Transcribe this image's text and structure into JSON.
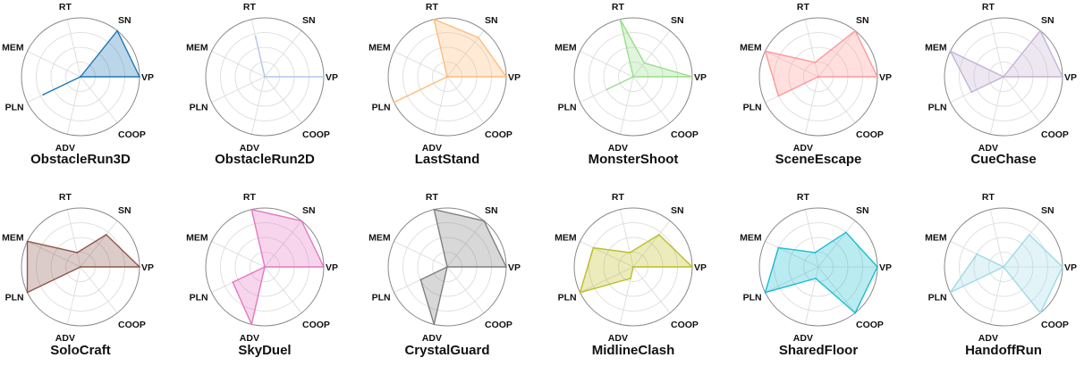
{
  "chart_data": [
    {
      "type": "radar",
      "title": "ObstacleRun3D",
      "color": "#1f77b4",
      "axes": [
        "VP",
        "SN",
        "RT",
        "MEM",
        "PLN",
        "ADV",
        "COOP"
      ],
      "values": [
        1.0,
        1.0,
        0.0,
        0.0,
        0.7,
        0.0,
        0.0
      ],
      "rlim": [
        0,
        1
      ]
    },
    {
      "type": "radar",
      "title": "ObstacleRun2D",
      "color": "#aec7e8",
      "axes": [
        "VP",
        "SN",
        "RT",
        "MEM",
        "PLN",
        "ADV",
        "COOP"
      ],
      "values": [
        1.0,
        0.0,
        0.7,
        0.0,
        0.0,
        0.0,
        0.0
      ],
      "rlim": [
        0,
        1
      ]
    },
    {
      "type": "radar",
      "title": "LastStand",
      "color": "#ffbb78",
      "axes": [
        "VP",
        "SN",
        "RT",
        "MEM",
        "PLN",
        "ADV",
        "COOP"
      ],
      "values": [
        1.0,
        0.85,
        1.0,
        0.0,
        1.0,
        0.0,
        0.0
      ],
      "rlim": [
        0,
        1
      ]
    },
    {
      "type": "radar",
      "title": "MonsterShoot",
      "color": "#98df8a",
      "axes": [
        "VP",
        "SN",
        "RT",
        "MEM",
        "PLN",
        "ADV",
        "COOP"
      ],
      "values": [
        1.0,
        0.3,
        1.0,
        0.0,
        0.5,
        0.0,
        0.0
      ],
      "rlim": [
        0,
        1
      ]
    },
    {
      "type": "radar",
      "title": "SceneEscape",
      "color": "#ff9896",
      "axes": [
        "VP",
        "SN",
        "RT",
        "MEM",
        "PLN",
        "ADV",
        "COOP"
      ],
      "values": [
        1.0,
        1.0,
        0.25,
        1.0,
        0.75,
        0.0,
        0.0
      ],
      "rlim": [
        0,
        1
      ]
    },
    {
      "type": "radar",
      "title": "CueChase",
      "color": "#c5b0d5",
      "axes": [
        "VP",
        "SN",
        "RT",
        "MEM",
        "PLN",
        "ADV",
        "COOP"
      ],
      "values": [
        1.0,
        1.0,
        0.0,
        1.0,
        0.6,
        0.0,
        0.0
      ],
      "rlim": [
        0,
        1
      ]
    },
    {
      "type": "radar",
      "title": "SoloCraft",
      "color": "#8c564b",
      "axes": [
        "VP",
        "SN",
        "RT",
        "MEM",
        "PLN",
        "ADV",
        "COOP"
      ],
      "values": [
        1.0,
        0.7,
        0.25,
        1.0,
        1.0,
        0.0,
        0.0
      ],
      "rlim": [
        0,
        1
      ]
    },
    {
      "type": "radar",
      "title": "SkyDuel",
      "color": "#e377c2",
      "axes": [
        "VP",
        "SN",
        "RT",
        "MEM",
        "PLN",
        "ADV",
        "COOP"
      ],
      "values": [
        1.0,
        1.0,
        1.0,
        0.0,
        0.6,
        1.0,
        0.0
      ],
      "rlim": [
        0,
        1
      ]
    },
    {
      "type": "radar",
      "title": "CrystalGuard",
      "color": "#7f7f7f",
      "axes": [
        "VP",
        "SN",
        "RT",
        "MEM",
        "PLN",
        "ADV",
        "COOP"
      ],
      "values": [
        1.0,
        1.0,
        1.0,
        0.0,
        0.5,
        1.0,
        0.0
      ],
      "rlim": [
        0,
        1
      ]
    },
    {
      "type": "radar",
      "title": "MidlineClash",
      "color": "#bcbd22",
      "axes": [
        "VP",
        "SN",
        "RT",
        "MEM",
        "PLN",
        "ADV",
        "COOP"
      ],
      "values": [
        1.0,
        0.7,
        0.25,
        0.75,
        1.0,
        0.2,
        0.0
      ],
      "rlim": [
        0,
        1
      ]
    },
    {
      "type": "radar",
      "title": "SharedFloor",
      "color": "#17becf",
      "axes": [
        "VP",
        "SN",
        "RT",
        "MEM",
        "PLN",
        "ADV",
        "COOP"
      ],
      "values": [
        1.0,
        0.75,
        0.25,
        0.75,
        1.0,
        0.2,
        1.0
      ],
      "rlim": [
        0,
        1
      ]
    },
    {
      "type": "radar",
      "title": "HandoffRun",
      "color": "#9edae5",
      "axes": [
        "VP",
        "SN",
        "RT",
        "MEM",
        "PLN",
        "ADV",
        "COOP"
      ],
      "values": [
        1.0,
        0.7,
        0.0,
        0.5,
        1.0,
        0.0,
        1.0
      ],
      "rlim": [
        0,
        1
      ]
    }
  ]
}
